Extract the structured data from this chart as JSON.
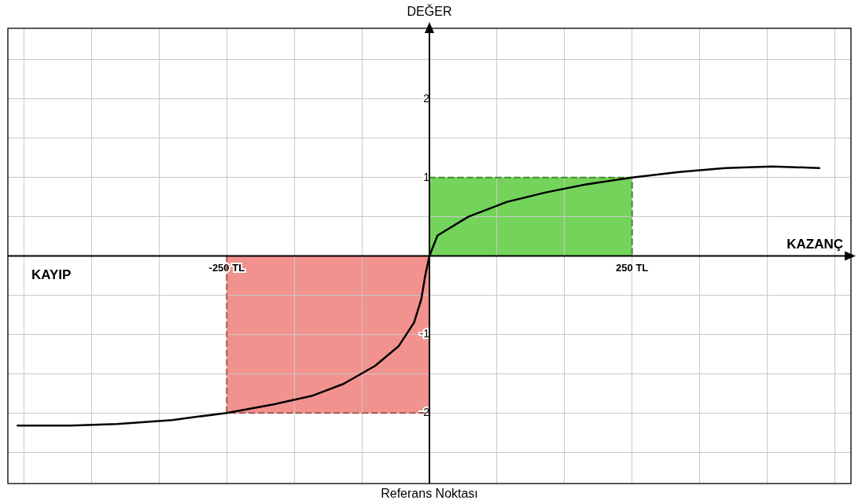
{
  "chart_data": {
    "type": "line",
    "xlabel": "Referans Noktası",
    "ylabel": "DEĞER",
    "annotations": [
      "KAYIP",
      "KAZANÇ"
    ],
    "xlim": [
      -520,
      520
    ],
    "ylim": [
      -2.9,
      2.9
    ],
    "xticks": [
      {
        "value": -500,
        "label": null
      },
      {
        "value": -416.67,
        "label": null
      },
      {
        "value": -333.33,
        "label": null
      },
      {
        "value": -250,
        "label": "-250 TL"
      },
      {
        "value": -166.67,
        "label": null
      },
      {
        "value": -83.33,
        "label": null
      },
      {
        "value": 83.33,
        "label": null
      },
      {
        "value": 166.67,
        "label": null
      },
      {
        "value": 250,
        "label": "250 TL"
      },
      {
        "value": 333.33,
        "label": null
      },
      {
        "value": 416.67,
        "label": null
      },
      {
        "value": 500,
        "label": null
      }
    ],
    "yticks": [
      {
        "value": -2.5,
        "label": null
      },
      -2,
      {
        "value": -1.5,
        "label": null
      },
      -1,
      {
        "value": -0.5,
        "label": null
      },
      {
        "value": 0.5,
        "label": null
      },
      1,
      {
        "value": 1.5,
        "label": null
      },
      2,
      {
        "value": 2.5,
        "label": null
      }
    ],
    "grid": true,
    "marker": "none",
    "series": [
      {
        "type": "area",
        "color": "#5ccb3e",
        "line_style": "dashed",
        "x": [
          0,
          250,
          250
        ],
        "values": [
          1,
          1,
          0
        ]
      },
      {
        "type": "area",
        "color": "#f07f7a",
        "line_style": "dashed",
        "x": [
          -250,
          -250,
          0
        ],
        "values": [
          0,
          -2,
          -2
        ]
      },
      {
        "type": "line",
        "color": "#000000",
        "line_style": "solid",
        "x": [
          -508,
          -442,
          -385,
          -317,
          -250,
          -192,
          -144,
          -106,
          -67,
          -38,
          -19,
          -10,
          -5,
          0,
          10,
          48,
          96,
          144,
          192,
          250,
          308,
          365,
          423,
          481
        ],
        "values": [
          -2.16,
          -2.16,
          -2.14,
          -2.09,
          -2.0,
          -1.89,
          -1.78,
          -1.63,
          -1.4,
          -1.15,
          -0.85,
          -0.55,
          -0.24,
          0,
          0.26,
          0.5,
          0.69,
          0.81,
          0.91,
          1.0,
          1.07,
          1.12,
          1.14,
          1.12
        ]
      }
    ]
  }
}
